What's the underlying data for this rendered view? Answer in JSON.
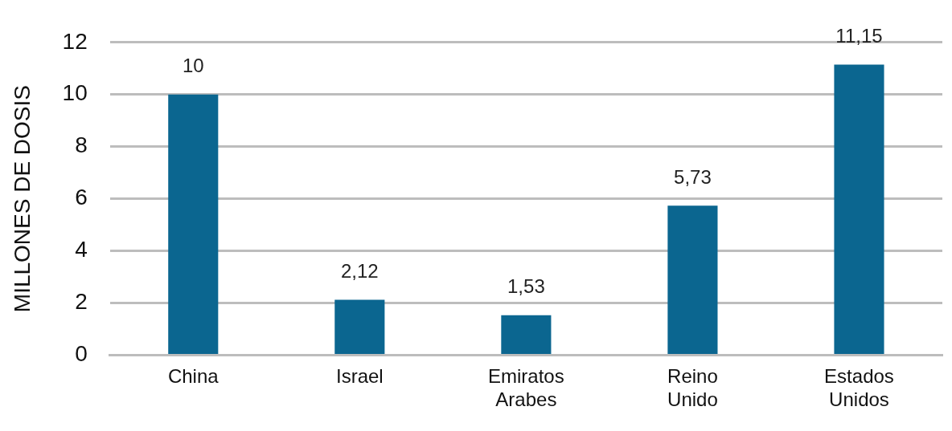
{
  "chart_data": {
    "type": "bar",
    "ylabel": "MILLONES DE DOSIS",
    "categories": [
      "China",
      "Israel",
      "Emiratos Arabes",
      "Reino Unido",
      "Estados Unidos"
    ],
    "values": [
      10,
      2.12,
      1.53,
      5.73,
      11.15
    ],
    "value_labels": [
      "10",
      "2,12",
      "1,53",
      "5,73",
      "11,15"
    ],
    "color": "#0b6690",
    "ylim": [
      0,
      12
    ],
    "yticks": [
      0,
      2,
      4,
      6,
      8,
      10,
      12
    ],
    "grid": "y",
    "legend": false
  }
}
